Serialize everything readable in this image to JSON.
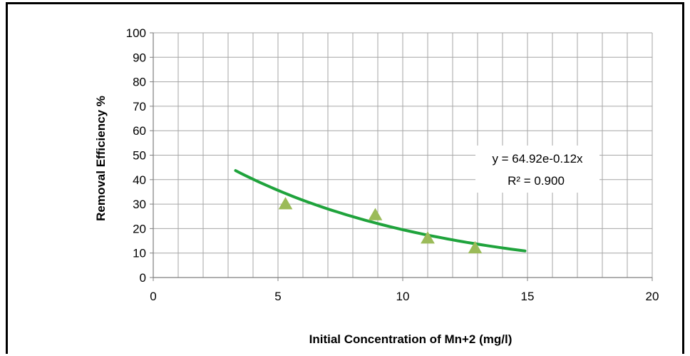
{
  "chart_data": {
    "type": "scatter",
    "xlabel": "Initial Concentration of Mn+2 (mg/l)",
    "ylabel": "Removal Efficiency %",
    "xlim": [
      0,
      20
    ],
    "ylim": [
      0,
      100
    ],
    "x_ticks": [
      "0",
      "5",
      "10",
      "15",
      "20"
    ],
    "y_ticks": [
      "0",
      "10",
      "20",
      "30",
      "40",
      "50",
      "60",
      "70",
      "80",
      "90",
      "100"
    ],
    "grid": true,
    "marker": "triangle",
    "marker_color": "#9BBB59",
    "trendline_color": "#1FA33C",
    "points": [
      {
        "x": 5.3,
        "y": 30
      },
      {
        "x": 8.9,
        "y": 25.5
      },
      {
        "x": 11.0,
        "y": 16
      },
      {
        "x": 12.9,
        "y": 12
      }
    ],
    "trendline": {
      "type": "exponential",
      "a": 64.92,
      "b": -0.12,
      "x_range": [
        3.3,
        14.9
      ],
      "equation": "y = 64.92e-0.12x",
      "r_squared": "R² = 0.900"
    }
  }
}
